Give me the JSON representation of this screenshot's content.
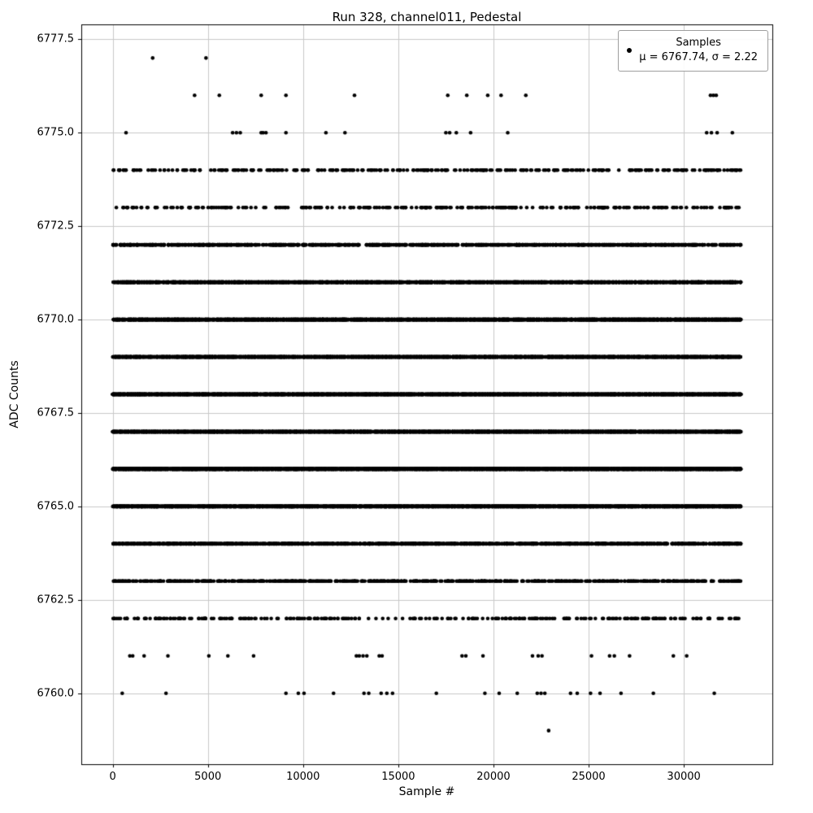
{
  "figure": {
    "title": "Run 328, channel011, Pedestal",
    "xlabel": "Sample #",
    "ylabel": "ADC Counts"
  },
  "legend": {
    "label": "Samples",
    "stats": "μ = 6767.74, σ = 2.22"
  },
  "chart_data": {
    "type": "scatter",
    "title": "Run 328, channel011, Pedestal",
    "xlabel": "Sample #",
    "ylabel": "ADC Counts",
    "xlim": [
      -1650,
      34650
    ],
    "ylim": [
      6758.1,
      6777.9
    ],
    "x_range": [
      0,
      33000
    ],
    "xticks": [
      0,
      5000,
      10000,
      15000,
      20000,
      25000,
      30000
    ],
    "xtick_labels": [
      "0",
      "5000",
      "10000",
      "15000",
      "20000",
      "25000",
      "30000"
    ],
    "yticks": [
      6760.0,
      6762.5,
      6765.0,
      6767.5,
      6770.0,
      6772.5,
      6775.0,
      6777.5
    ],
    "ytick_labels": [
      "6760.0",
      "6762.5",
      "6765.0",
      "6767.5",
      "6770.0",
      "6772.5",
      "6775.0",
      "6777.5"
    ],
    "grid": true,
    "legend_position": "upper right",
    "marker": {
      "color": "#000000",
      "size": 2.3
    },
    "stats": {
      "mu": 6767.74,
      "sigma": 2.22
    },
    "seed": 1328,
    "levels": [
      {
        "adc": 6777,
        "x": [
          2100,
          4900
        ]
      },
      {
        "adc": 6776,
        "x": [
          4300,
          5600,
          7800,
          9100,
          12700,
          17600,
          18600,
          19700,
          20400,
          21700,
          31400,
          31550,
          31700
        ]
      },
      {
        "adc": 6775,
        "x": [
          700,
          6300,
          6500,
          6700,
          7800,
          7900,
          8050,
          9100,
          11200,
          12200,
          17500,
          17700,
          18050,
          18800,
          20750,
          31200,
          31450,
          31750,
          32550
        ]
      },
      {
        "adc": 6774,
        "count": 320
      },
      {
        "adc": 6773,
        "count": 270
      },
      {
        "adc": 6772,
        "count": 850
      },
      {
        "adc": 6771,
        "count": 2100
      },
      {
        "adc": 6770,
        "count": 3100
      },
      {
        "adc": 6769,
        "count": 4100
      },
      {
        "adc": 6768,
        "count": 5200
      },
      {
        "adc": 6767,
        "count": 4700
      },
      {
        "adc": 6766,
        "count": 3900
      },
      {
        "adc": 6765,
        "count": 2400
      },
      {
        "adc": 6764,
        "count": 1300
      },
      {
        "adc": 6763,
        "count": 620
      },
      {
        "adc": 6762,
        "count": 270
      },
      {
        "adc": 6761,
        "x": [
          900,
          1050,
          1650,
          2900,
          5050,
          6050,
          7400,
          12800,
          12950,
          13150,
          13350,
          14000,
          14150,
          18350,
          18550,
          19450,
          22050,
          22350,
          22550,
          25150,
          26100,
          26350,
          27150,
          29450,
          30150
        ]
      },
      {
        "adc": 6760,
        "x": [
          500,
          2800,
          9100,
          9750,
          10050,
          11600,
          13200,
          13450,
          14100,
          14400,
          14700,
          17000,
          19550,
          20300,
          21250,
          22300,
          22500,
          22700,
          24050,
          24400,
          25100,
          25600,
          26700,
          28400,
          31600
        ]
      },
      {
        "adc": 6759,
        "x": [
          22900
        ]
      }
    ]
  }
}
